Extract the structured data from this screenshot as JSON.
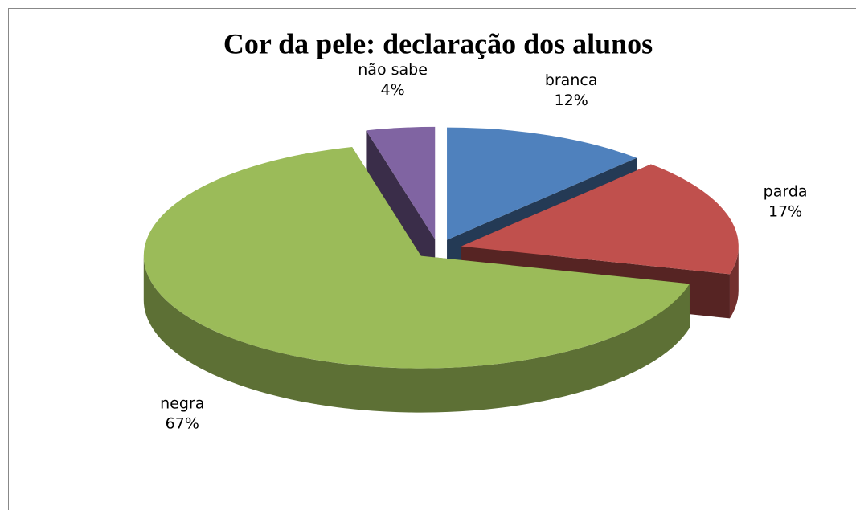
{
  "chart_data": {
    "type": "pie",
    "title": "Cor da pele: declaração dos alunos",
    "categories": [
      "branca",
      "parda",
      "negra",
      "não sabe"
    ],
    "values": [
      12,
      17,
      67,
      4
    ],
    "value_labels": [
      "12%",
      "17%",
      "67%",
      "4%"
    ],
    "colors": [
      "#4f81bd",
      "#c0504d",
      "#9bbb59",
      "#8064a2"
    ]
  }
}
